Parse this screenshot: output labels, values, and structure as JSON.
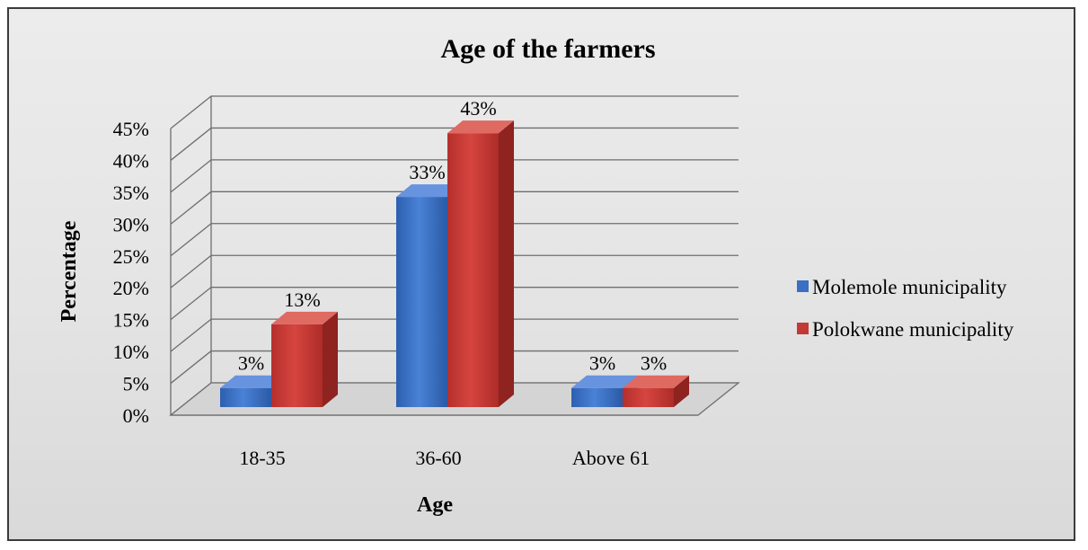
{
  "chart_data": {
    "type": "bar",
    "title": "Age of the farmers",
    "xlabel": "Age",
    "ylabel": "Percentage",
    "categories": [
      "18-35",
      "36-60",
      "Above 61"
    ],
    "series": [
      {
        "name": "Molemole municipality",
        "values": [
          3,
          33,
          3
        ],
        "labels": [
          "3%",
          "33%",
          "3%"
        ],
        "color": "#3a6fc4"
      },
      {
        "name": "Polokwane municipality",
        "values": [
          13,
          43,
          3
        ],
        "labels": [
          "13%",
          "43%",
          "3%"
        ],
        "color": "#c23a36"
      }
    ],
    "yticks": [
      "0%",
      "5%",
      "10%",
      "15%",
      "20%",
      "25%",
      "30%",
      "35%",
      "40%",
      "45%"
    ],
    "ylim": [
      0,
      45
    ],
    "grid": true,
    "legend_position": "right",
    "style": "3d-clustered-column"
  }
}
